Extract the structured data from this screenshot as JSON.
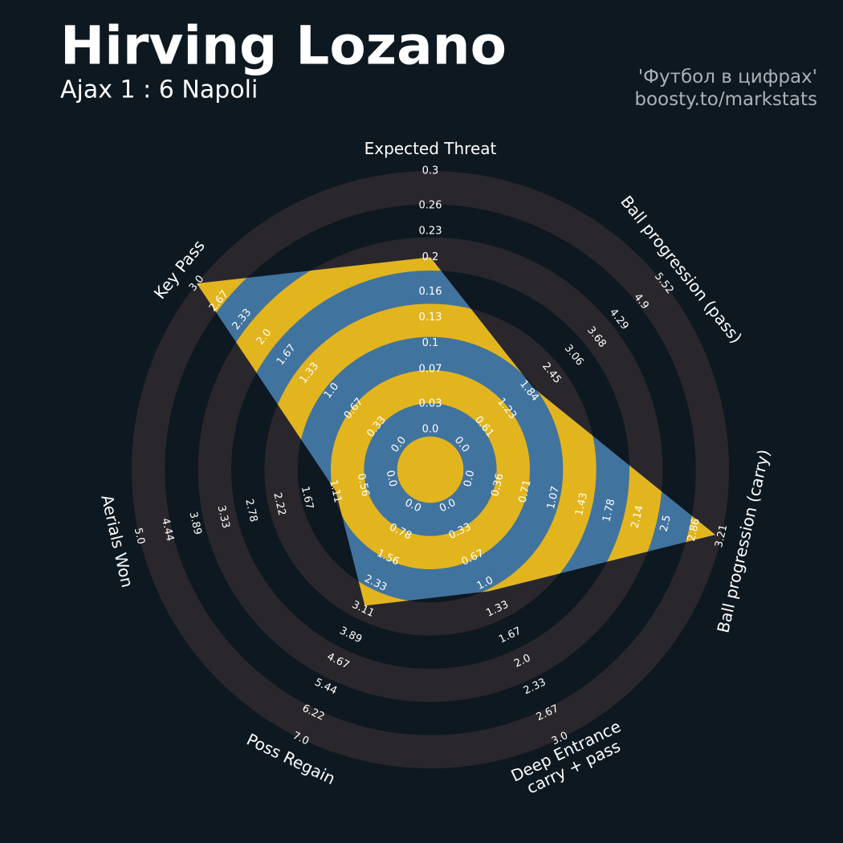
{
  "chart_data": {
    "type": "radar",
    "title": "Hirving Lozano",
    "subtitle": "Ajax 1 : 6 Napoli",
    "credits": [
      "'Футбол в цифрах'",
      "boosty.to/markstats"
    ],
    "categories": [
      "Expected Threat",
      "Ball progression (pass)",
      "Ball progression (carry)",
      "Deep Entrance\ncarry + pass",
      "Poss Regain",
      "Aerials Won",
      "Key Pass"
    ],
    "values": [
      0.2,
      1.95,
      3.13,
      1.1,
      3.0,
      1.1,
      3.0
    ],
    "axes": [
      {
        "lim": [
          0,
          0.3
        ],
        "ticks": [
          {
            "value": 0,
            "label": "0.0"
          },
          0.03,
          0.07,
          0.1,
          0.13,
          0.16,
          0.2,
          0.23,
          0.26,
          0.3
        ]
      },
      {
        "lim": [
          0,
          5.52
        ],
        "ticks": [
          {
            "value": 0,
            "label": "0.0"
          },
          0.61,
          1.23,
          1.84,
          2.45,
          3.06,
          3.68,
          4.29,
          4.9,
          5.52
        ]
      },
      {
        "lim": [
          0,
          3.21
        ],
        "ticks": [
          {
            "value": 0,
            "label": "0.0"
          },
          0.36,
          0.71,
          1.07,
          1.43,
          1.78,
          2.14,
          2.5,
          2.86,
          3.21
        ]
      },
      {
        "lim": [
          0,
          3
        ],
        "ticks": [
          {
            "value": 0,
            "label": "0.0"
          },
          0.33,
          0.67,
          {
            "value": 1,
            "label": "1.0"
          },
          1.33,
          1.67,
          {
            "value": 2,
            "label": "2.0"
          },
          2.33,
          2.67,
          {
            "value": 3,
            "label": "3.0"
          }
        ]
      },
      {
        "lim": [
          0,
          7
        ],
        "ticks": [
          {
            "value": 0,
            "label": "0.0"
          },
          0.78,
          1.56,
          2.33,
          3.11,
          3.89,
          4.67,
          5.44,
          6.22,
          {
            "value": 7,
            "label": "7.0"
          }
        ]
      },
      {
        "lim": [
          0,
          5
        ],
        "ticks": [
          {
            "value": 0,
            "label": "0.0"
          },
          0.56,
          1.11,
          1.67,
          2.22,
          2.78,
          3.33,
          3.89,
          4.44,
          {
            "value": 5,
            "label": "5.0"
          }
        ]
      },
      {
        "lim": [
          0,
          3
        ],
        "ticks": [
          {
            "value": 0,
            "label": "0.0"
          },
          0.33,
          0.67,
          {
            "value": 1,
            "label": "1.0"
          },
          1.33,
          1.67,
          {
            "value": 2,
            "label": "2.0"
          },
          2.33,
          2.67,
          {
            "value": 3,
            "label": "3.0"
          }
        ]
      }
    ],
    "colors": {
      "polygon": "#41739f",
      "polygon_rings": "#e2b51e",
      "background_rings": "#2a272c"
    }
  }
}
